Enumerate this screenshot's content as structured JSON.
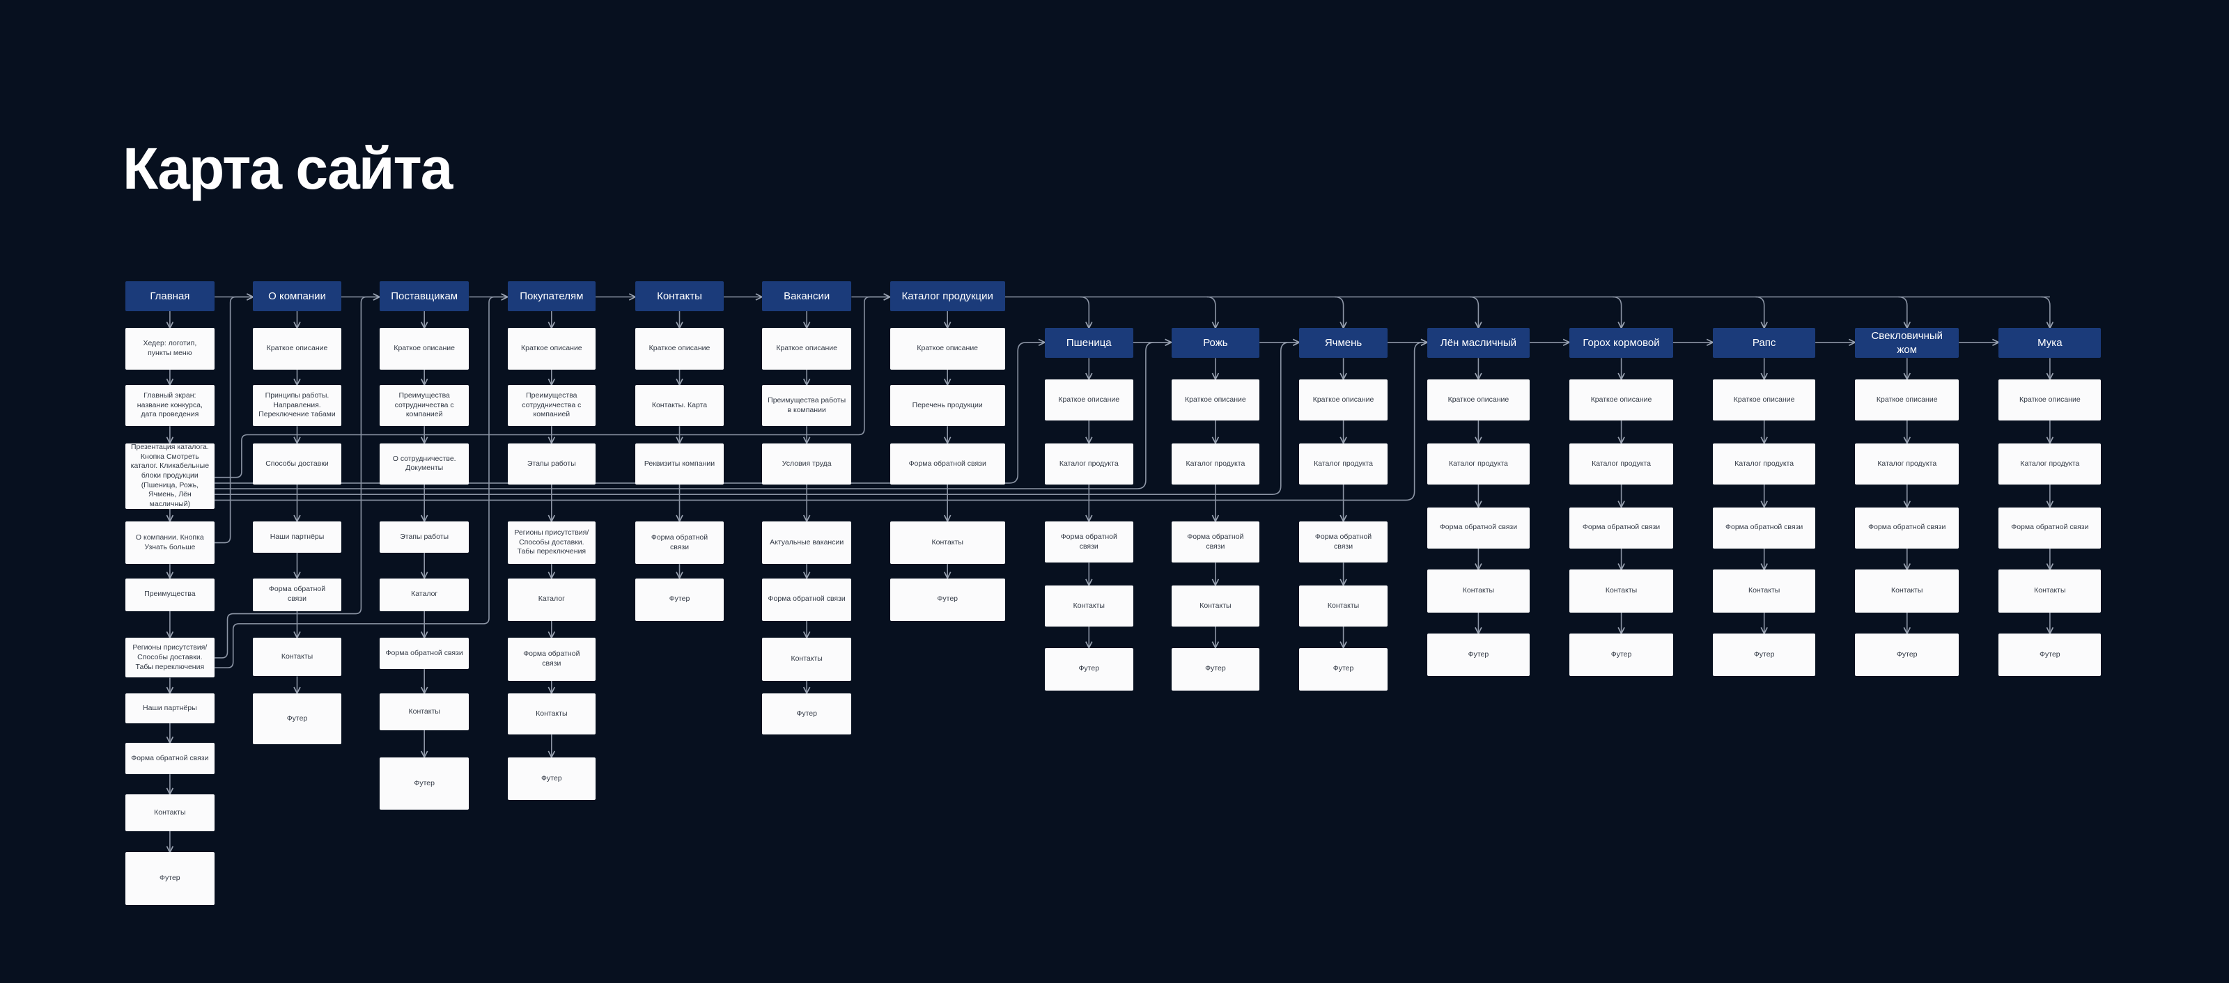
{
  "title": "Карта сайта",
  "columns": [
    {
      "header": "Главная",
      "items": [
        "Хедер: логотип, пункты меню",
        "Главный экран: название конкурса, дата проведения",
        "Презентация каталога. Кнопка Смотреть каталог. Кликабельные блоки продукции (Пшеница, Рожь, Ячмень, Лён масличный)",
        "О компании. Кнопка Узнать больше",
        "Преимущества",
        "Регионы присутствия/ Способы доставки. Табы переключения",
        "Наши партнёры",
        "Форма обратной связи",
        "Контакты",
        "Футер"
      ]
    },
    {
      "header": "О компании",
      "items": [
        "Краткое описание",
        "Принципы работы. Направления. Переключение табами",
        "Способы доставки",
        "Наши партнёры",
        "Форма обратной связи",
        "Контакты",
        "Футер"
      ]
    },
    {
      "header": "Поставщикам",
      "items": [
        "Краткое описание",
        "Преимущества сотрудничества с компанией",
        "О сотрудничестве. Документы",
        "Этапы работы",
        "Каталог",
        "Форма обратной связи",
        "Контакты",
        "Футер"
      ]
    },
    {
      "header": "Покупателям",
      "items": [
        "Краткое описание",
        "Преимущества сотрудничества с компанией",
        "Этапы работы",
        "Регионы присутствия/ Способы доставки. Табы переключения",
        "Каталог",
        "Форма обратной связи",
        "Контакты",
        "Футер"
      ]
    },
    {
      "header": "Контакты",
      "items": [
        "Краткое описание",
        "Контакты. Карта",
        "Реквизиты компании",
        "Форма обратной связи",
        "Футер"
      ]
    },
    {
      "header": "Вакансии",
      "items": [
        "Краткое описание",
        "Преимущества работы в компании",
        "Условия труда",
        "Актуальные вакансии",
        "Форма обратной связи",
        "Контакты",
        "Футер"
      ]
    },
    {
      "header": "Каталог продукции",
      "items": [
        "Краткое описание",
        "Перечень продукции",
        "Форма обратной связи",
        "Контакты",
        "Футер"
      ]
    },
    {
      "header": "Пшеница",
      "items": [
        "Краткое описание",
        "Каталог продукта",
        "Форма обратной связи",
        "Контакты",
        "Футер"
      ]
    },
    {
      "header": "Рожь",
      "items": [
        "Краткое описание",
        "Каталог продукта",
        "Форма обратной связи",
        "Контакты",
        "Футер"
      ]
    },
    {
      "header": "Ячмень",
      "items": [
        "Краткое описание",
        "Каталог продукта",
        "Форма обратной связи",
        "Контакты",
        "Футер"
      ]
    },
    {
      "header": "Лён масличный",
      "items": [
        "Краткое описание",
        "Каталог продукта",
        "Форма обратной связи",
        "Контакты",
        "Футер"
      ]
    },
    {
      "header": "Горох кормовой",
      "items": [
        "Краткое описание",
        "Каталог продукта",
        "Форма обратной связи",
        "Контакты",
        "Футер"
      ]
    },
    {
      "header": "Рапс",
      "items": [
        "Краткое описание",
        "Каталог продукта",
        "Форма обратной связи",
        "Контакты",
        "Футер"
      ]
    },
    {
      "header": "Свекловичный жом",
      "items": [
        "Краткое описание",
        "Каталог продукта",
        "Форма обратной связи",
        "Контакты",
        "Футер"
      ]
    },
    {
      "header": "Мука",
      "items": [
        "Краткое описание",
        "Каталог продукта",
        "Форма обратной связи",
        "Контакты",
        "Футер"
      ]
    }
  ]
}
